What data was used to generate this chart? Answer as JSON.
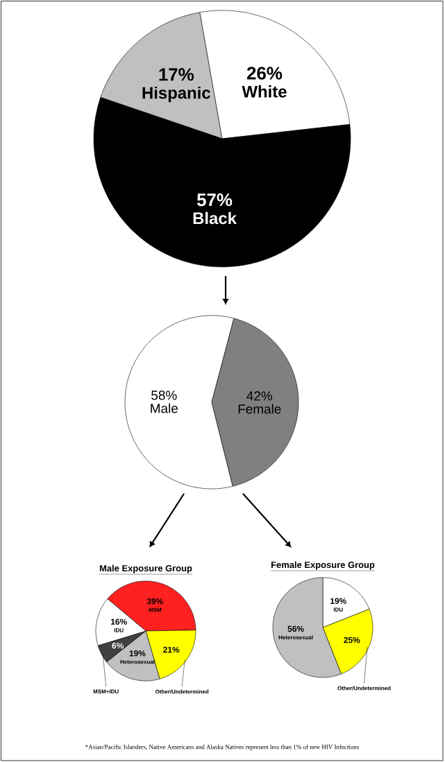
{
  "chart_data": [
    {
      "type": "pie",
      "categories": [
        "Hispanic",
        "White",
        "Black"
      ],
      "values": [
        17,
        26,
        57
      ],
      "value_labels": [
        "17%",
        "26%",
        "57%"
      ],
      "colors": [
        "#c0c0c0",
        "#ffffff",
        "#000000"
      ]
    },
    {
      "type": "pie",
      "categories": [
        "Male",
        "Female"
      ],
      "values": [
        58,
        42
      ],
      "value_labels": [
        "58%",
        "42%"
      ],
      "colors": [
        "#ffffff",
        "#808080"
      ]
    },
    {
      "type": "pie",
      "title": "Male Exposure Group",
      "categories": [
        "MSM",
        "Other/Undetermined",
        "Heterosexual",
        "MSM+IDU",
        "IDU"
      ],
      "values": [
        39,
        21,
        19,
        6,
        16
      ],
      "value_labels": [
        "39%",
        "21%",
        "19%",
        "6%",
        "16%"
      ],
      "colors": [
        "#ff2020",
        "#ffff00",
        "#c0c0c0",
        "#404040",
        "#ffffff"
      ]
    },
    {
      "type": "pie",
      "title": "Female Exposure Group",
      "categories": [
        "IDU",
        "Other/Undetermined",
        "Heterosexual"
      ],
      "values": [
        19,
        25,
        56
      ],
      "value_labels": [
        "19%",
        "25%",
        "56%"
      ],
      "colors": [
        "#ffffff",
        "#ffff00",
        "#c0c0c0"
      ],
      "annotations": [
        "*Asian/Pacific Islanders, Native Americans and Alaska Natives represent less than 1% of new HIV Infections"
      ]
    }
  ]
}
